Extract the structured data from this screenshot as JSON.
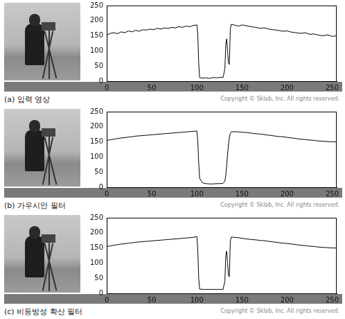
{
  "chart_data": [
    {
      "type": "line",
      "title": "(a) 입력 영상",
      "annotation": "Copyright © Sklab, Inc. All rights reserved.",
      "x": [
        0,
        4,
        8,
        12,
        16,
        20,
        24,
        28,
        32,
        36,
        40,
        44,
        48,
        52,
        56,
        60,
        64,
        68,
        72,
        76,
        80,
        84,
        88,
        92,
        96,
        100,
        101,
        102,
        103,
        106,
        110,
        114,
        118,
        122,
        126,
        129,
        131,
        132,
        133,
        134,
        135,
        136,
        137,
        138,
        142,
        146,
        150,
        155,
        160,
        165,
        170,
        175,
        180,
        185,
        190,
        195,
        200,
        205,
        210,
        215,
        220,
        225,
        230,
        235,
        240,
        245,
        250,
        255
      ],
      "values": [
        152,
        158,
        160,
        157,
        163,
        160,
        166,
        163,
        168,
        165,
        170,
        169,
        172,
        170,
        175,
        172,
        176,
        174,
        178,
        176,
        180,
        178,
        182,
        180,
        184,
        186,
        150,
        60,
        12,
        10,
        11,
        9,
        12,
        11,
        13,
        12,
        40,
        120,
        140,
        100,
        60,
        55,
        170,
        188,
        185,
        182,
        186,
        183,
        180,
        178,
        175,
        176,
        172,
        170,
        168,
        165,
        166,
        162,
        160,
        158,
        160,
        155,
        156,
        152,
        150,
        153,
        148,
        150
      ],
      "color": "#000000",
      "xlim": [
        0,
        255
      ],
      "xticks": [
        0,
        50,
        100,
        150,
        200,
        250
      ],
      "ylim": [
        0,
        250
      ],
      "yticks": [
        0,
        50,
        100,
        150,
        200,
        250
      ],
      "grid": false
    },
    {
      "type": "line",
      "title": "(b) 가우시안 필터",
      "annotation": "Copyright © Sklab, Inc. All rights reserved.",
      "x": [
        0,
        4,
        8,
        12,
        16,
        20,
        24,
        28,
        32,
        36,
        40,
        44,
        48,
        52,
        56,
        60,
        64,
        68,
        72,
        76,
        80,
        84,
        88,
        92,
        96,
        100,
        101,
        102,
        103,
        106,
        110,
        114,
        118,
        122,
        126,
        129,
        131,
        132,
        133,
        134,
        135,
        136,
        137,
        138,
        142,
        146,
        150,
        155,
        160,
        165,
        170,
        175,
        180,
        185,
        190,
        195,
        200,
        205,
        210,
        215,
        220,
        225,
        230,
        235,
        240,
        245,
        250,
        255
      ],
      "values": [
        155,
        157,
        159,
        161,
        163,
        164,
        166,
        167,
        169,
        170,
        171,
        172,
        173,
        174,
        175,
        176,
        177,
        178,
        179,
        180,
        181,
        182,
        183,
        184,
        185,
        186,
        150,
        80,
        30,
        15,
        12,
        11,
        11,
        12,
        12,
        13,
        20,
        40,
        70,
        110,
        140,
        165,
        178,
        183,
        184,
        183,
        182,
        181,
        179,
        177,
        176,
        174,
        172,
        170,
        168,
        167,
        165,
        163,
        161,
        159,
        158,
        156,
        155,
        153,
        152,
        151,
        150,
        150
      ],
      "color": "#000000",
      "xlim": [
        0,
        255
      ],
      "xticks": [
        0,
        50,
        100,
        150,
        200,
        250
      ],
      "ylim": [
        0,
        250
      ],
      "yticks": [
        0,
        50,
        100,
        150,
        200,
        250
      ],
      "grid": false
    },
    {
      "type": "line",
      "title": "(c) 비등방성 확산 필터",
      "annotation": "Copyright © Sklab, Inc. All rights reserved.",
      "x": [
        0,
        4,
        8,
        12,
        16,
        20,
        24,
        28,
        32,
        36,
        40,
        44,
        48,
        52,
        56,
        60,
        64,
        68,
        72,
        76,
        80,
        84,
        88,
        92,
        96,
        100,
        101,
        102,
        103,
        106,
        110,
        114,
        118,
        122,
        126,
        129,
        131,
        132,
        133,
        134,
        135,
        136,
        137,
        138,
        142,
        146,
        150,
        155,
        160,
        165,
        170,
        175,
        180,
        185,
        190,
        195,
        200,
        205,
        210,
        215,
        220,
        225,
        230,
        235,
        240,
        245,
        250,
        255
      ],
      "values": [
        155,
        157,
        159,
        161,
        163,
        164,
        166,
        167,
        169,
        170,
        171,
        172,
        173,
        174,
        175,
        176,
        177,
        178,
        179,
        180,
        181,
        182,
        183,
        184,
        185,
        188,
        140,
        50,
        14,
        13,
        13,
        13,
        13,
        13,
        13,
        13,
        40,
        125,
        140,
        100,
        58,
        55,
        170,
        186,
        185,
        184,
        182,
        180,
        178,
        177,
        175,
        174,
        172,
        170,
        168,
        166,
        165,
        163,
        161,
        159,
        158,
        156,
        155,
        153,
        152,
        151,
        150,
        150
      ],
      "color": "#000000",
      "xlim": [
        0,
        255
      ],
      "xticks": [
        0,
        50,
        100,
        150,
        200,
        250
      ],
      "ylim": [
        0,
        250
      ],
      "yticks": [
        0,
        50,
        100,
        150,
        200,
        250
      ],
      "grid": false
    }
  ]
}
